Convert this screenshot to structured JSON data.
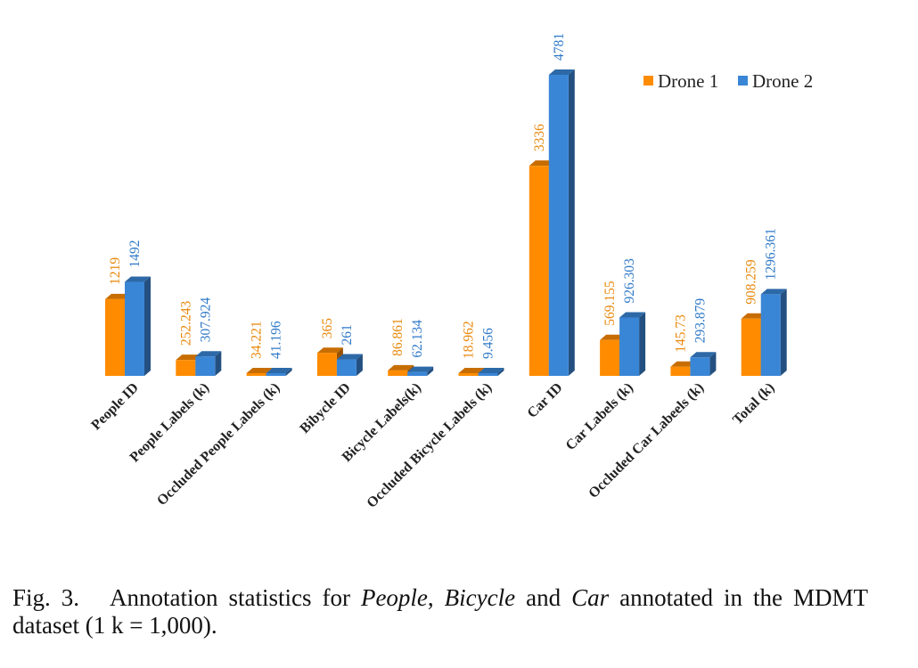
{
  "chart_data": {
    "type": "bar",
    "style": "3d-clustered-column",
    "categories": [
      "People ID",
      "People Labels (k)",
      "Occluded People Labels (k)",
      "Bibycle ID",
      "Bicycle Labels(k)",
      "Occluded Bicycle Labels (k)",
      "Car ID",
      "Car Labels (k)",
      "Occluded Car Labeels (k)",
      "Total (k)"
    ],
    "series": [
      {
        "name": "Drone 1",
        "color": "#FF8C00",
        "values": [
          1219,
          252.243,
          34.221,
          365,
          86.861,
          18.962,
          3336,
          569.155,
          145.73,
          908.259
        ],
        "labels": [
          "1219",
          "252.243",
          "34.221",
          "365",
          "86.861",
          "18.962",
          "3336",
          "569.155",
          "145.73",
          "908.259"
        ]
      },
      {
        "name": "Drone 2",
        "color": "#3A86D6",
        "values": [
          1492,
          307.924,
          41.196,
          261,
          62.134,
          9.456,
          4781,
          926.303,
          293.879,
          1296.361
        ],
        "labels": [
          "1492",
          "307.924",
          "41.196",
          "261",
          "62.134",
          "9.456",
          "4781",
          "926.303",
          "293.879",
          "1296.361"
        ]
      }
    ],
    "ylim": [
      0,
      4781
    ],
    "grid": false,
    "y_axis_shown": false,
    "legend_position": "top-right",
    "label_colors": {
      "Drone 1": "#E8870A",
      "Drone 2": "#2D78C8"
    }
  },
  "caption": {
    "fig": "Fig. 3.",
    "text_parts": [
      {
        "text": "Annotation statistics for ",
        "italic": false
      },
      {
        "text": "People",
        "italic": true
      },
      {
        "text": ", ",
        "italic": false
      },
      {
        "text": "Bicycle",
        "italic": true
      },
      {
        "text": " and ",
        "italic": false
      },
      {
        "text": "Car",
        "italic": true
      },
      {
        "text": " annotated in the MDMT dataset (1 k = 1,000).",
        "italic": false
      }
    ]
  }
}
